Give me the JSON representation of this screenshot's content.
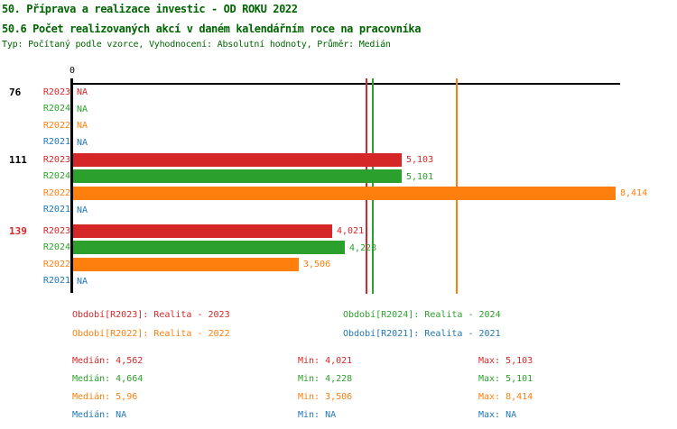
{
  "header": {
    "title_line1": "50. Příprava a realizace investic - OD ROKU 2022",
    "title_line2": "50.6 Počet realizovaných akcí v daném kalendářním roce na pracovníka",
    "subtitle": "Typ: Počítaný podle vzorce, Vyhodnocení: Absolutní hodnoty, Průměr: Medián",
    "title_color": "#006400"
  },
  "chart_data": {
    "type": "bar",
    "orientation": "horizontal",
    "x_axis": {
      "zero_label": "0",
      "min": 0,
      "max": 8.5,
      "gridlines": false
    },
    "series_order": [
      "R2023",
      "R2024",
      "R2022",
      "R2021"
    ],
    "series_colors": {
      "R2023": "#d62728",
      "R2024": "#2ca02c",
      "R2022": "#ff7f0e",
      "R2021": "#1f77b4"
    },
    "na_text": "NA",
    "groups": [
      {
        "label": "76",
        "label_color": "#000000",
        "rows": [
          {
            "series": "R2023",
            "value": null,
            "display": "NA"
          },
          {
            "series": "R2024",
            "value": null,
            "display": "NA"
          },
          {
            "series": "R2022",
            "value": null,
            "display": "NA"
          },
          {
            "series": "R2021",
            "value": null,
            "display": "NA"
          }
        ]
      },
      {
        "label": "111",
        "label_color": "#000000",
        "rows": [
          {
            "series": "R2023",
            "value": 5.103,
            "display": "5,103"
          },
          {
            "series": "R2024",
            "value": 5.101,
            "display": "5,101"
          },
          {
            "series": "R2022",
            "value": 8.414,
            "display": "8,414"
          },
          {
            "series": "R2021",
            "value": null,
            "display": "NA"
          }
        ]
      },
      {
        "label": "139",
        "label_color": "#d62728",
        "rows": [
          {
            "series": "R2023",
            "value": 4.021,
            "display": "4,021"
          },
          {
            "series": "R2024",
            "value": 4.228,
            "display": "4,228"
          },
          {
            "series": "R2022",
            "value": 3.506,
            "display": "3,506"
          },
          {
            "series": "R2021",
            "value": null,
            "display": "NA"
          }
        ]
      }
    ],
    "median_lines": [
      {
        "series": "R2023",
        "value": 4.562,
        "color": "#d62728"
      },
      {
        "series": "R2024",
        "value": 4.664,
        "color": "#2ca02c"
      },
      {
        "series": "R2022",
        "value": 5.96,
        "color": "#ff7f0e"
      }
    ]
  },
  "legend": {
    "items": [
      {
        "text": "Období[R2023]: Realita - 2023",
        "color": "#d62728",
        "col": 0,
        "row": 0
      },
      {
        "text": "Období[R2024]: Realita - 2024",
        "color": "#2ca02c",
        "col": 1,
        "row": 0
      },
      {
        "text": "Období[R2022]: Realita - 2022",
        "color": "#ff7f0e",
        "col": 0,
        "row": 1
      },
      {
        "text": "Období[R2021]: Realita - 2021",
        "color": "#1f77b4",
        "col": 1,
        "row": 1
      }
    ]
  },
  "stats": {
    "rows": [
      {
        "median": "Medián: 4,562",
        "min": "Min: 4,021",
        "max": "Max: 5,103",
        "color": "#d62728"
      },
      {
        "median": "Medián: 4,664",
        "min": "Min: 4,228",
        "max": "Max: 5,101",
        "color": "#2ca02c"
      },
      {
        "median": "Medián: 5,96",
        "min": "Min: 3,506",
        "max": "Max: 8,414",
        "color": "#ff7f0e"
      },
      {
        "median": "Medián: NA",
        "min": "Min: NA",
        "max": "Max: NA",
        "color": "#1f77b4"
      }
    ]
  }
}
